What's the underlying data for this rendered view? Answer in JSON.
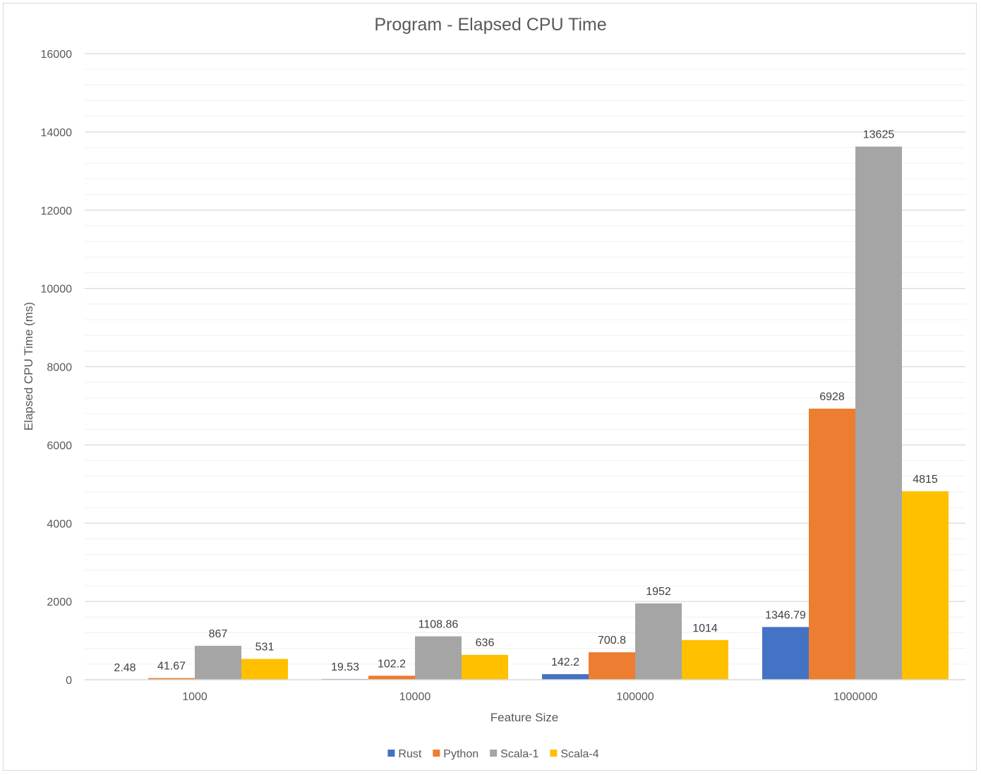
{
  "chart_data": {
    "type": "bar",
    "title": "Program - Elapsed CPU Time",
    "xlabel": "Feature Size",
    "ylabel": "Elapsed CPU Time (ms)",
    "categories": [
      "1000",
      "10000",
      "100000",
      "1000000"
    ],
    "ylim": [
      0,
      16000
    ],
    "yticks": [
      0,
      2000,
      4000,
      6000,
      8000,
      10000,
      12000,
      14000,
      16000
    ],
    "grid": true,
    "legend_position": "bottom",
    "series": [
      {
        "name": "Rust",
        "color": "#4472C4",
        "values": [
          2.48,
          19.53,
          142.2,
          1346.79
        ],
        "labels": [
          "2.48",
          "19.53",
          "142.2",
          "1346.79"
        ]
      },
      {
        "name": "Python",
        "color": "#ED7D31",
        "values": [
          41.67,
          102.2,
          700.8,
          6928
        ],
        "labels": [
          "41.67",
          "102.2",
          "700.8",
          "6928"
        ]
      },
      {
        "name": "Scala-1",
        "color": "#A5A5A5",
        "values": [
          867,
          1108.86,
          1952,
          13625
        ],
        "labels": [
          "867",
          "1108.86",
          "1952",
          "13625"
        ]
      },
      {
        "name": "Scala-4",
        "color": "#FFC000",
        "values": [
          531,
          636,
          1014,
          4815
        ],
        "labels": [
          "531",
          "636",
          "1014",
          "4815"
        ]
      }
    ]
  }
}
